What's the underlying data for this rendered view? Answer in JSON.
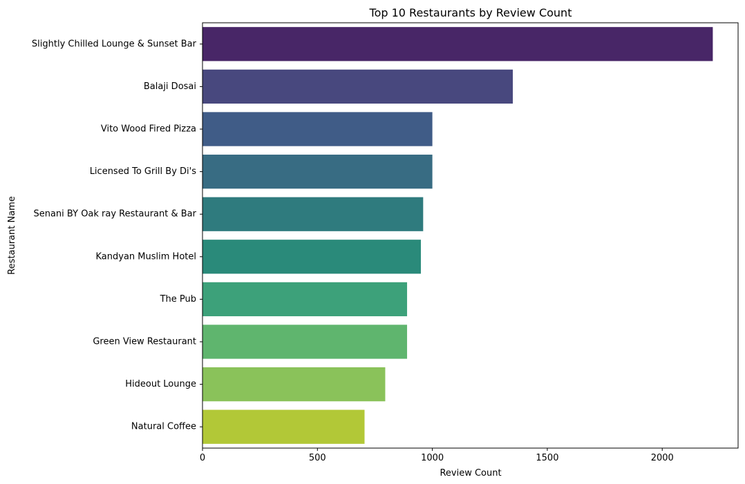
{
  "chart_data": {
    "type": "bar",
    "orientation": "horizontal",
    "title": "Top 10 Restaurants by Review Count",
    "xlabel": "Review Count",
    "ylabel": "Restaurant Name",
    "xlim": [
      0,
      2330
    ],
    "xticks": [
      0,
      500,
      1000,
      1500,
      2000
    ],
    "grid": false,
    "categories": [
      "Slightly Chilled Lounge & Sunset Bar",
      "Balaji Dosai",
      "Vito Wood Fired Pizza",
      "Licensed To Grill By Di's",
      "Senani BY Oak ray Restaurant & Bar",
      "Kandyan Muslim Hotel",
      "The Pub",
      "Green View Restaurant",
      "Hideout Lounge",
      "Natural Coffee"
    ],
    "values": [
      2220,
      1350,
      1000,
      1000,
      960,
      950,
      890,
      890,
      795,
      705
    ],
    "colors": [
      "#482667",
      "#48487e",
      "#405c87",
      "#386c83",
      "#2f7b7e",
      "#2a8a7a",
      "#3da17a",
      "#5fb56e",
      "#8ac25a",
      "#b2c837"
    ]
  }
}
